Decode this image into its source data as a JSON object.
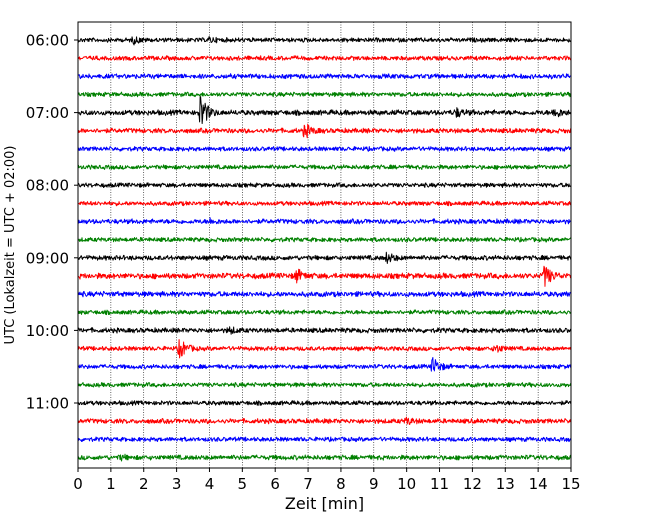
{
  "chart_data": {
    "type": "line",
    "chart_kind": "helicorder seismogram",
    "xlabel": "Zeit  [min]",
    "ylabel": "UTC (Lokalzeit = UTC + 02:00)",
    "xlim": [
      0,
      15
    ],
    "x_ticks": [
      "0",
      "1",
      "2",
      "3",
      "4",
      "5",
      "6",
      "7",
      "8",
      "9",
      "10",
      "11",
      "12",
      "13",
      "14",
      "15"
    ],
    "y_tick_labels": [
      "06:00",
      "07:00",
      "08:00",
      "09:00",
      "10:00",
      "11:00"
    ],
    "grid": "vertical dotted lines at each minute",
    "trace_colors": [
      "#000000",
      "#ff0000",
      "#0000ff",
      "#008000"
    ],
    "traces": [
      {
        "start": "06:00",
        "amplitude": 1.0,
        "events": [
          {
            "x": 1.7,
            "amp": 3
          },
          {
            "x": 4.0,
            "amp": 2
          }
        ]
      },
      {
        "start": "06:15",
        "amplitude": 1.0,
        "events": []
      },
      {
        "start": "06:30",
        "amplitude": 1.1,
        "events": []
      },
      {
        "start": "06:45",
        "amplitude": 1.0,
        "events": []
      },
      {
        "start": "07:00",
        "amplitude": 1.2,
        "events": [
          {
            "x": 3.73,
            "amp": 18
          },
          {
            "x": 11.5,
            "amp": 4
          },
          {
            "x": 14.5,
            "amp": 5
          }
        ]
      },
      {
        "start": "07:15",
        "amplitude": 1.1,
        "events": [
          {
            "x": 6.9,
            "amp": 7
          }
        ]
      },
      {
        "start": "07:30",
        "amplitude": 1.0,
        "events": []
      },
      {
        "start": "07:45",
        "amplitude": 1.0,
        "events": []
      },
      {
        "start": "08:00",
        "amplitude": 1.0,
        "events": []
      },
      {
        "start": "08:15",
        "amplitude": 1.0,
        "events": []
      },
      {
        "start": "08:30",
        "amplitude": 1.1,
        "events": [
          {
            "x": 4.0,
            "amp": 2
          }
        ]
      },
      {
        "start": "08:45",
        "amplitude": 1.0,
        "events": []
      },
      {
        "start": "09:00",
        "amplitude": 1.1,
        "events": [
          {
            "x": 9.4,
            "amp": 5
          }
        ]
      },
      {
        "start": "09:15",
        "amplitude": 1.3,
        "events": [
          {
            "x": 6.65,
            "amp": 6
          },
          {
            "x": 14.2,
            "amp": 11
          }
        ]
      },
      {
        "start": "09:30",
        "amplitude": 1.2,
        "events": []
      },
      {
        "start": "09:45",
        "amplitude": 1.0,
        "events": []
      },
      {
        "start": "10:00",
        "amplitude": 1.1,
        "events": [
          {
            "x": 4.6,
            "amp": 3
          }
        ]
      },
      {
        "start": "10:15",
        "amplitude": 1.0,
        "events": [
          {
            "x": 3.1,
            "amp": 10
          },
          {
            "x": 12.7,
            "amp": 4
          }
        ]
      },
      {
        "start": "10:30",
        "amplitude": 1.0,
        "events": [
          {
            "x": 10.8,
            "amp": 9
          }
        ]
      },
      {
        "start": "10:45",
        "amplitude": 1.0,
        "events": []
      },
      {
        "start": "11:00",
        "amplitude": 1.0,
        "events": []
      },
      {
        "start": "11:15",
        "amplitude": 1.1,
        "events": [
          {
            "x": 10.0,
            "amp": 3
          }
        ]
      },
      {
        "start": "11:30",
        "amplitude": 1.0,
        "events": []
      },
      {
        "start": "11:45",
        "amplitude": 1.1,
        "events": [
          {
            "x": 1.3,
            "amp": 2
          }
        ]
      }
    ]
  }
}
